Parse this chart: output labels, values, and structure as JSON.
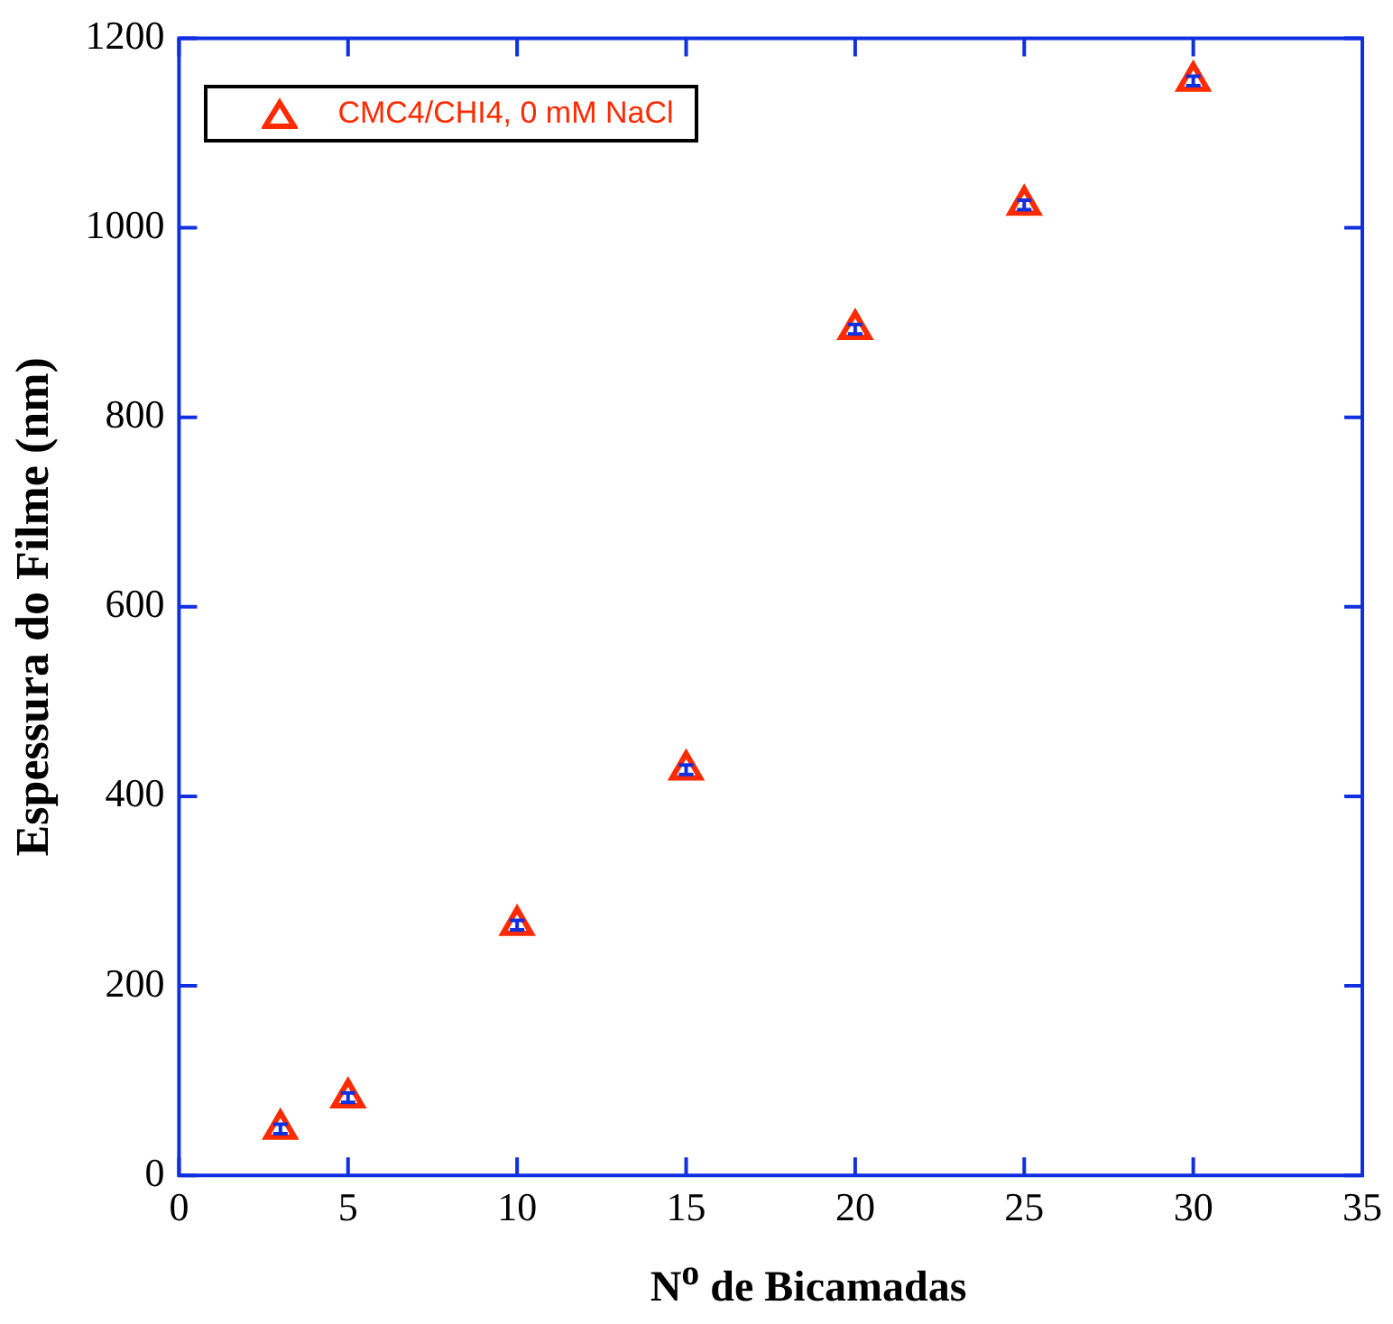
{
  "chart_data": {
    "type": "scatter",
    "xlabel": "N$^{o}$ de Bicamadas",
    "ylabel": "Espessura do Filme (nm)",
    "x": [
      3,
      5,
      10,
      15,
      20,
      25,
      30
    ],
    "series": [
      {
        "name": "CMC4/CHI4, 0 mM NaCl",
        "color": "#ff2a00",
        "values": [
          49,
          82,
          264,
          428,
          893,
          1024,
          1155
        ],
        "errors": [
          5,
          5,
          5,
          5,
          5,
          5,
          5
        ]
      }
    ],
    "xlim": [
      0,
      35
    ],
    "xticks": [
      0,
      5,
      10,
      15,
      20,
      25,
      30,
      35
    ],
    "ylim": [
      0,
      1200
    ],
    "yticks": [
      0,
      200,
      400,
      600,
      800,
      1000,
      1200
    ],
    "grid": false,
    "legend": "top left",
    "marker": "triangle"
  }
}
